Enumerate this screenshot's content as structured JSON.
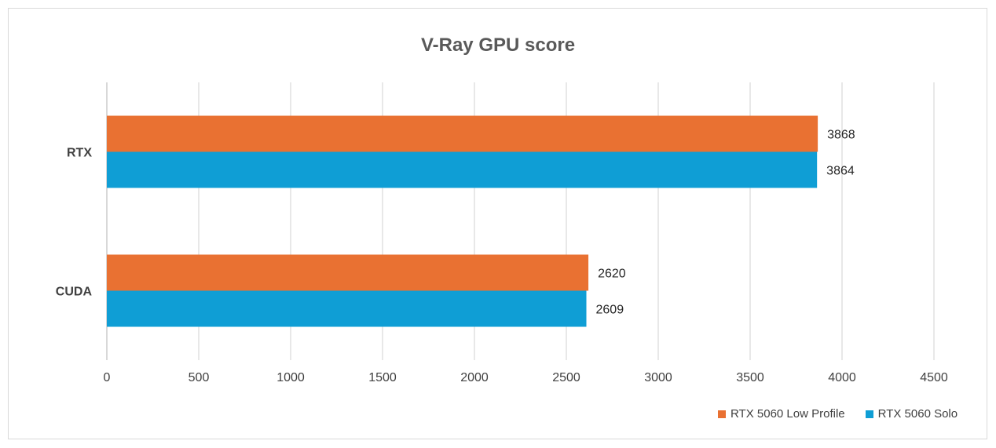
{
  "chart_data": {
    "type": "bar",
    "orientation": "horizontal",
    "title": "V-Ray GPU score",
    "categories": [
      "CUDA",
      "RTX"
    ],
    "series": [
      {
        "name": "RTX 5060 Low Profile",
        "color": "#E97132",
        "values": [
          2620,
          3868
        ]
      },
      {
        "name": "RTX 5060 Solo",
        "color": "#0F9ED5",
        "values": [
          2609,
          3864
        ]
      }
    ],
    "xlim": [
      0,
      4500
    ],
    "x_ticks": [
      0,
      500,
      1000,
      1500,
      2000,
      2500,
      3000,
      3500,
      4000,
      4500
    ],
    "grid": true,
    "legend_position": "bottom-right",
    "data_labels": true
  }
}
